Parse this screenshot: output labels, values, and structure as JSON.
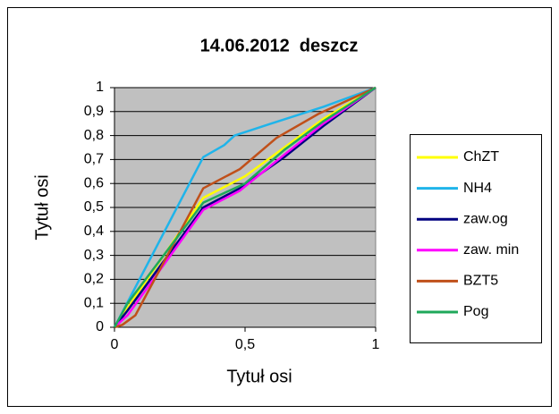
{
  "chart_data": {
    "type": "line",
    "title": "14.06.2012  deszcz",
    "xlabel": "Tytuł osi",
    "ylabel": "Tytuł osi",
    "xlim": [
      0,
      1
    ],
    "ylim": [
      0,
      1
    ],
    "xticks": [
      0,
      {
        "value": 0.5,
        "label": "0,5"
      },
      1
    ],
    "yticks": [
      0,
      {
        "value": 0.1,
        "label": "0,1"
      },
      {
        "value": 0.2,
        "label": "0,2"
      },
      {
        "value": 0.3,
        "label": "0,3"
      },
      {
        "value": 0.4,
        "label": "0,4"
      },
      {
        "value": 0.5,
        "label": "0,5"
      },
      {
        "value": 0.6,
        "label": "0,6"
      },
      {
        "value": 0.7,
        "label": "0,7"
      },
      {
        "value": 0.8,
        "label": "0,8"
      },
      {
        "value": 0.9,
        "label": "0,9"
      },
      1
    ],
    "grid": true,
    "legend": "right",
    "series": [
      {
        "name": "ChZT",
        "color": "#ffff00",
        "x": [
          0,
          0.05,
          0.34,
          0.5,
          0.65,
          0.8,
          1
        ],
        "values": [
          0,
          0.08,
          0.54,
          0.63,
          0.75,
          0.87,
          1
        ]
      },
      {
        "name": "NH4",
        "color": "#1fb4ea",
        "x": [
          0,
          0.34,
          0.42,
          0.46,
          0.6,
          0.8,
          1
        ],
        "values": [
          0,
          0.71,
          0.76,
          0.8,
          0.85,
          0.92,
          1
        ]
      },
      {
        "name": "zaw.og",
        "color": "#000080",
        "x": [
          0,
          0.05,
          0.34,
          0.48,
          0.65,
          0.8,
          1
        ],
        "values": [
          0,
          0.07,
          0.5,
          0.58,
          0.71,
          0.84,
          1
        ]
      },
      {
        "name": "zaw. min",
        "color": "#ff00ff",
        "x": [
          0,
          0.05,
          0.34,
          0.48,
          0.65,
          0.8,
          1
        ],
        "values": [
          0,
          0.05,
          0.49,
          0.57,
          0.72,
          0.85,
          1
        ]
      },
      {
        "name": "BZT5",
        "color": "#c0501a",
        "x": [
          0,
          0.03,
          0.08,
          0.34,
          0.48,
          0.62,
          0.78,
          1
        ],
        "values": [
          0,
          0.01,
          0.05,
          0.58,
          0.66,
          0.79,
          0.89,
          1
        ]
      },
      {
        "name": "Pog",
        "color": "#1fa85a",
        "x": [
          0,
          0.05,
          0.34,
          0.5,
          0.65,
          0.8,
          1
        ],
        "values": [
          0,
          0.1,
          0.52,
          0.6,
          0.74,
          0.86,
          1
        ]
      }
    ]
  }
}
